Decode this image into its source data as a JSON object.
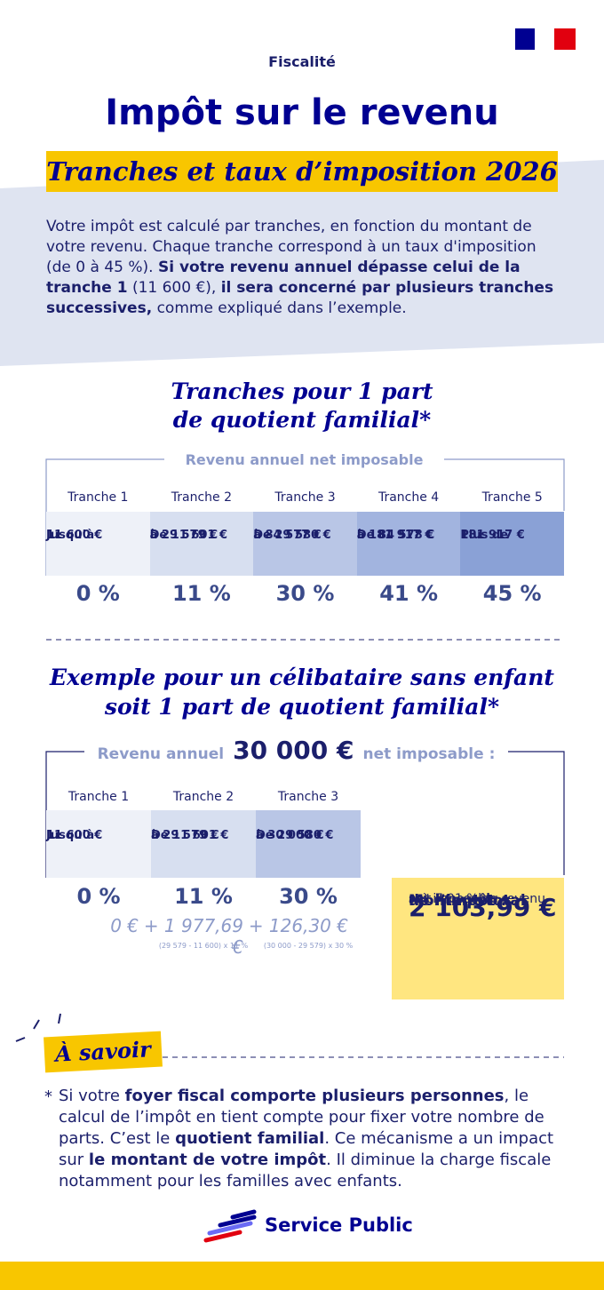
{
  "header": {
    "category": "Fiscalité",
    "title": "Impôt sur le revenu",
    "subtitle": "Tranches et taux d’imposition 2026"
  },
  "intro": [
    {
      "text": "Votre impôt est calculé par tranches, en fonction du montant de votre revenu. Chaque tranche correspond à un taux d'imposition (de 0 à 45 %). ",
      "bold": false
    },
    {
      "text": "Si votre revenu annuel dépasse celui de la tranche 1",
      "bold": true
    },
    {
      "text": " (11 600 €), ",
      "bold": false
    },
    {
      "text": "il sera concerné par plusieurs tranches successives,",
      "bold": true
    },
    {
      "text": " comme expliqué dans l’exemple.",
      "bold": false
    }
  ],
  "brackets": {
    "title": [
      "Tranches pour 1 part",
      "de quotient familial*"
    ],
    "label": "Revenu annuel net imposable",
    "tranches": [
      {
        "name": "Tranche 1",
        "range": [
          "Jusqu’à",
          "11 600 €"
        ],
        "rate": "0 %"
      },
      {
        "name": "Tranche 2",
        "range": [
          "De 11 601 €",
          "à 29 579 €"
        ],
        "rate": "11 %"
      },
      {
        "name": "Tranche 3",
        "range": [
          "De 29 580 €",
          "à 84 577 €"
        ],
        "rate": "30 %"
      },
      {
        "name": "Tranche 4",
        "range": [
          "De 84 578 €",
          "à 181 917 €"
        ],
        "rate": "41 %"
      },
      {
        "name": "Tranche 5",
        "range": [
          "Plus de",
          "181 917 €"
        ],
        "rate": "45 %"
      }
    ]
  },
  "example": {
    "title": [
      "Exemple pour un célibataire sans enfant",
      "soit 1 part de quotient familial*"
    ],
    "label": {
      "before": "Revenu annuel",
      "amount": "30 000 €",
      "after": "net imposable :"
    },
    "tranches": [
      {
        "name": "Tranche 1",
        "range": [
          "Jusqu’à",
          "11 600 €"
        ],
        "rate": "0 %",
        "amount": "0 €"
      },
      {
        "name": "Tranche 2",
        "range": [
          "De 11 601 €",
          "à 29 579 €"
        ],
        "rate": "11 %",
        "amount": "+ 1 977,69 €",
        "formula": "(29 579 - 11 600) x 11 %"
      },
      {
        "name": "Tranche 3",
        "range": [
          "De 29 580 €",
          "à 30 000 €"
        ],
        "rate": "30 %",
        "amount": "+ 126,30 €",
        "formula": "(30 000 - 29 579) x 30 %"
      }
    ],
    "total": {
      "label": [
        "Montant total",
        "de l’impôt :"
      ],
      "amount": "2 103,99 €",
      "note": [
        "soit 7,01 % du revenu",
        "net imposable"
      ]
    }
  },
  "info": {
    "title": "À savoir",
    "marker": "*",
    "text": [
      {
        "text": "Si votre ",
        "bold": false
      },
      {
        "text": "foyer fiscal comporte plusieurs personnes",
        "bold": true
      },
      {
        "text": ", le calcul de l’impôt en tient compte pour fixer votre nombre de parts. C’est le ",
        "bold": false
      },
      {
        "text": "quotient familial",
        "bold": true
      },
      {
        "text": ". Ce mécanisme a un impact sur ",
        "bold": false
      },
      {
        "text": "le montant de votre impôt",
        "bold": true
      },
      {
        "text": ". Il diminue la charge fiscale notamment pour les familles avec enfants.",
        "bold": false
      }
    ]
  },
  "footer": {
    "brand": "Service Public"
  }
}
